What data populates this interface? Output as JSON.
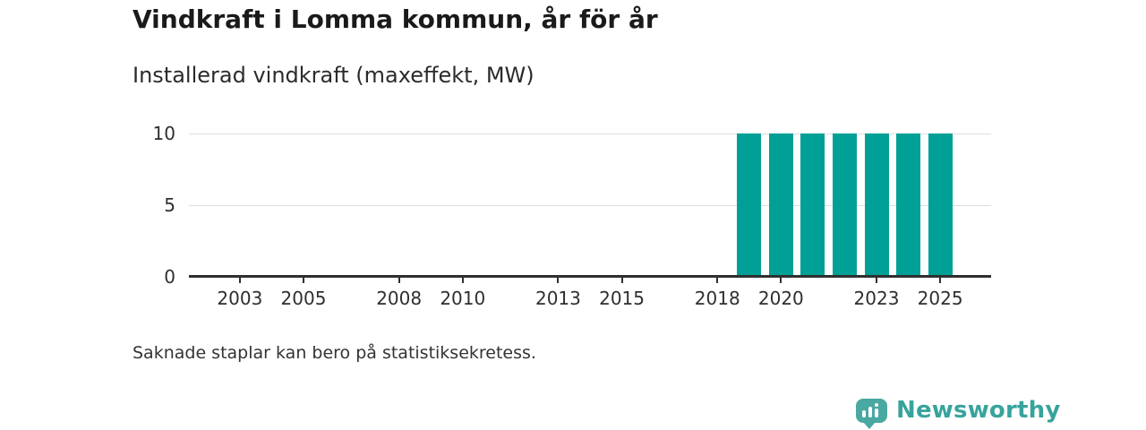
{
  "title": "Vindkraft i Lomma kommun, år för år",
  "subtitle": "Installerad vindkraft (maxeffekt, MW)",
  "footnote": "Saknade staplar kan bero på statistiksekretess.",
  "branding": {
    "name": "Newsworthy",
    "icon": "bar-chart-speech-bubble-icon",
    "icon_color": "#4aa8a2",
    "text_color": "#38a39d"
  },
  "colors": {
    "bar": "#00a096",
    "grid": "#dedede",
    "axis": "#2f2f2f",
    "title_text": "#1a1a1a",
    "body_text": "#333333"
  },
  "chart_data": {
    "type": "bar",
    "title": "Vindkraft i Lomma kommun, år för år",
    "subtitle": "Installerad vindkraft (maxeffekt, MW)",
    "xlabel": "",
    "ylabel": "Installerad vindkraft (maxeffekt, MW)",
    "x": [
      2019,
      2020,
      2021,
      2022,
      2023,
      2024,
      2025
    ],
    "values": [
      10,
      10,
      10,
      10,
      10,
      10,
      10
    ],
    "x_axis": {
      "range": [
        2001.4,
        2026.6
      ],
      "ticks": [
        2003,
        2005,
        2008,
        2010,
        2013,
        2015,
        2018,
        2020,
        2023,
        2025
      ]
    },
    "y_axis": {
      "range": [
        0,
        10
      ],
      "ticks": [
        0,
        5,
        10
      ]
    },
    "grid": "horizontal",
    "legend": "none",
    "bar_color": "#00a096",
    "annotation": "Saknade staplar kan bero på statistiksekretess."
  }
}
